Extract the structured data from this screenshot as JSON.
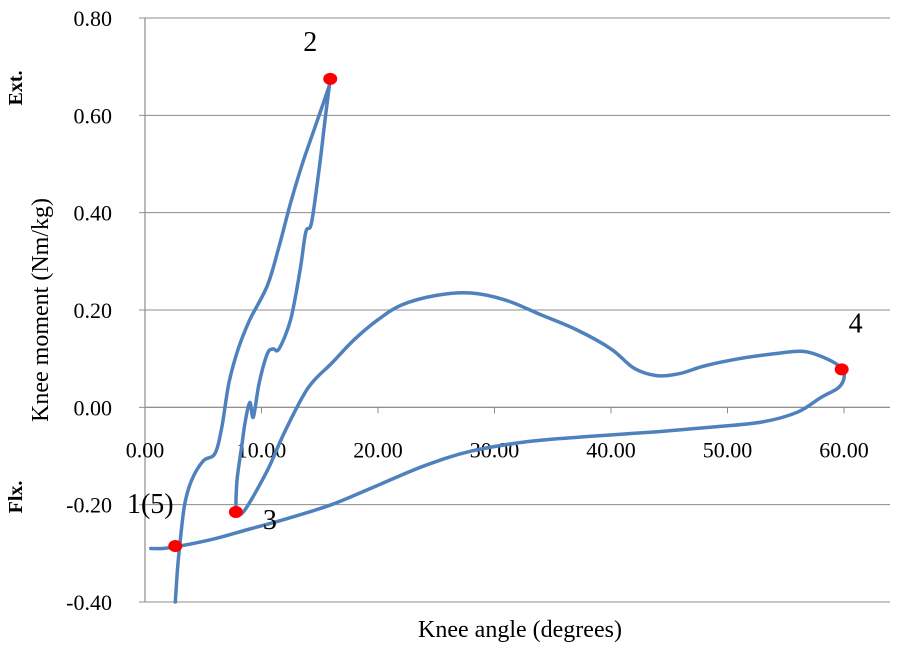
{
  "chart_data": {
    "type": "line",
    "title": "",
    "xlabel": "Knee angle (degrees)",
    "ylabel": "Knee moment (Nm/kg)",
    "ylabel_top": "Ext.",
    "ylabel_bottom": "Flx.",
    "xlim": [
      0,
      65
    ],
    "ylim": [
      -0.4,
      0.8
    ],
    "x_ticks": [
      "0.00",
      "10.00",
      "20.00",
      "30.00",
      "40.00",
      "50.00",
      "60.00"
    ],
    "x_tick_values": [
      0,
      10,
      20,
      30,
      40,
      50,
      60
    ],
    "y_ticks": [
      "0.80",
      "0.60",
      "0.40",
      "0.20",
      "0.00",
      "-0.20",
      "-0.40"
    ],
    "y_tick_values": [
      0.8,
      0.6,
      0.4,
      0.2,
      0.0,
      -0.2,
      -0.4
    ],
    "grid": "horizontal",
    "series_color": "#4f81bd",
    "marker_color": "#ff0000",
    "series": [
      {
        "values": [
          [
            2.6,
            -0.4
          ],
          [
            2.8,
            -0.33
          ],
          [
            3.0,
            -0.28
          ],
          [
            3.4,
            -0.2
          ],
          [
            4.0,
            -0.15
          ],
          [
            5.0,
            -0.11
          ],
          [
            6.0,
            -0.095
          ],
          [
            6.6,
            -0.04
          ],
          [
            7.2,
            0.05
          ],
          [
            8.0,
            0.12
          ],
          [
            9.0,
            0.18
          ],
          [
            10.5,
            0.25
          ],
          [
            11.5,
            0.33
          ],
          [
            12.5,
            0.42
          ],
          [
            13.5,
            0.5
          ],
          [
            14.8,
            0.59
          ],
          [
            15.8,
            0.66
          ],
          [
            15.9,
            0.675
          ],
          [
            15.5,
            0.6
          ],
          [
            15.0,
            0.5
          ],
          [
            14.3,
            0.38
          ],
          [
            13.8,
            0.36
          ],
          [
            13.3,
            0.28
          ],
          [
            12.5,
            0.18
          ],
          [
            11.5,
            0.12
          ],
          [
            11.0,
            0.12
          ],
          [
            10.5,
            0.11
          ],
          [
            9.8,
            0.05
          ],
          [
            9.3,
            -0.02
          ],
          [
            9.0,
            0.01
          ],
          [
            8.6,
            -0.03
          ],
          [
            8.3,
            -0.08
          ],
          [
            7.9,
            -0.15
          ],
          [
            7.8,
            -0.21
          ],
          [
            7.9,
            -0.22
          ],
          [
            8.6,
            -0.21
          ],
          [
            10.5,
            -0.13
          ],
          [
            12.0,
            -0.05
          ],
          [
            14.0,
            0.04
          ],
          [
            16.0,
            0.09
          ],
          [
            18.0,
            0.14
          ],
          [
            20.0,
            0.18
          ],
          [
            22.0,
            0.21
          ],
          [
            25.0,
            0.23
          ],
          [
            28.0,
            0.235
          ],
          [
            31.0,
            0.22
          ],
          [
            34.0,
            0.19
          ],
          [
            37.0,
            0.16
          ],
          [
            40.0,
            0.12
          ],
          [
            42.0,
            0.08
          ],
          [
            44.0,
            0.065
          ],
          [
            46.0,
            0.07
          ],
          [
            48.0,
            0.085
          ],
          [
            51.0,
            0.1
          ],
          [
            54.0,
            0.11
          ],
          [
            56.5,
            0.115
          ],
          [
            58.5,
            0.1
          ],
          [
            59.8,
            0.08
          ],
          [
            60.0,
            0.06
          ],
          [
            59.5,
            0.04
          ],
          [
            58.0,
            0.02
          ],
          [
            56.0,
            -0.01
          ],
          [
            53.0,
            -0.03
          ],
          [
            49.0,
            -0.04
          ],
          [
            44.0,
            -0.05
          ],
          [
            38.0,
            -0.06
          ],
          [
            33.0,
            -0.07
          ],
          [
            28.0,
            -0.09
          ],
          [
            24.0,
            -0.12
          ],
          [
            20.0,
            -0.16
          ],
          [
            16.0,
            -0.2
          ],
          [
            12.0,
            -0.23
          ],
          [
            9.0,
            -0.25
          ],
          [
            6.0,
            -0.27
          ],
          [
            3.0,
            -0.285
          ],
          [
            1.5,
            -0.29
          ],
          [
            0.5,
            -0.29
          ]
        ]
      }
    ],
    "markers": [
      {
        "label": "1(5)",
        "x": 2.6,
        "y": -0.285
      },
      {
        "label": "2",
        "x": 15.9,
        "y": 0.675
      },
      {
        "label": "3",
        "x": 7.8,
        "y": -0.215
      },
      {
        "label": "4",
        "x": 59.8,
        "y": 0.078
      }
    ]
  }
}
